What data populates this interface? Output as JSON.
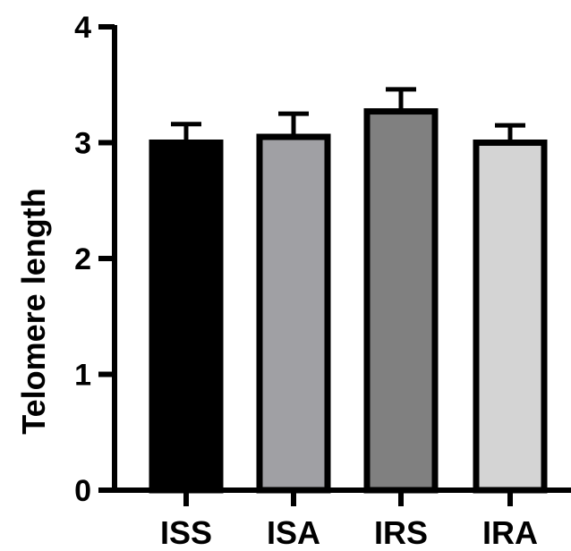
{
  "chart_data": {
    "type": "bar",
    "title": "",
    "xlabel": "",
    "ylabel": "Telomere length",
    "categories": [
      "ISS",
      "ISA",
      "IRS",
      "IRA"
    ],
    "values": [
      3.0,
      3.05,
      3.27,
      3.0
    ],
    "errors": [
      0.16,
      0.2,
      0.19,
      0.15
    ],
    "colors": [
      "#000000",
      "#a0a0a4",
      "#808080",
      "#d4d4d4"
    ],
    "ylim": [
      0,
      4
    ],
    "yticks": [
      "0",
      "1",
      "2",
      "3",
      "4"
    ],
    "grid": false,
    "legend": "none"
  }
}
